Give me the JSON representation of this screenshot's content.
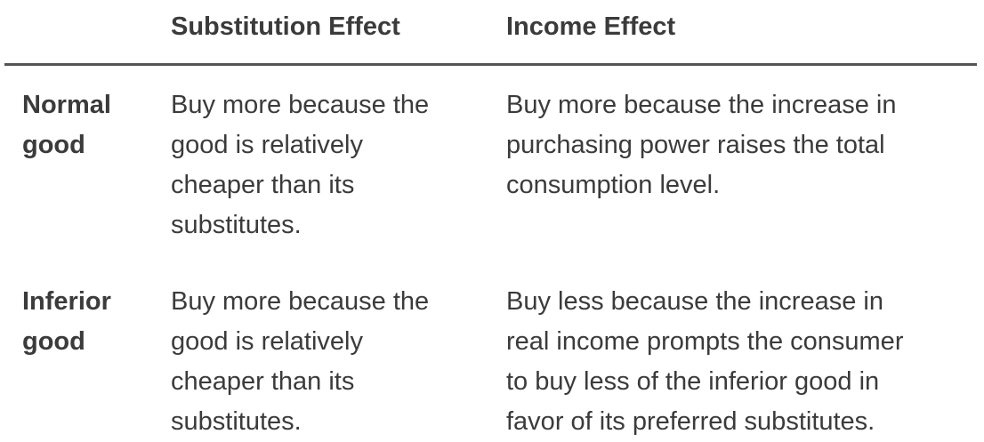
{
  "table": {
    "headers": {
      "substitution": "Substitution Effect",
      "income": "Income Effect"
    },
    "rows": [
      {
        "label_line1": "Normal",
        "label_line2": "good",
        "substitution_lines": [
          "Buy more because the",
          "good is relatively",
          "cheaper than its",
          "substitutes."
        ],
        "income_lines": [
          "Buy more because the increase in",
          "purchasing power raises the total",
          "consumption level."
        ]
      },
      {
        "label_line1": "Inferior",
        "label_line2": "good",
        "substitution_lines": [
          "Buy more because the",
          "good is relatively",
          "cheaper than its",
          "substitutes."
        ],
        "income_lines": [
          "Buy less because the increase in",
          "real income prompts the consumer",
          "to buy less of the inferior good in",
          "favor of its preferred substitutes."
        ]
      }
    ]
  }
}
